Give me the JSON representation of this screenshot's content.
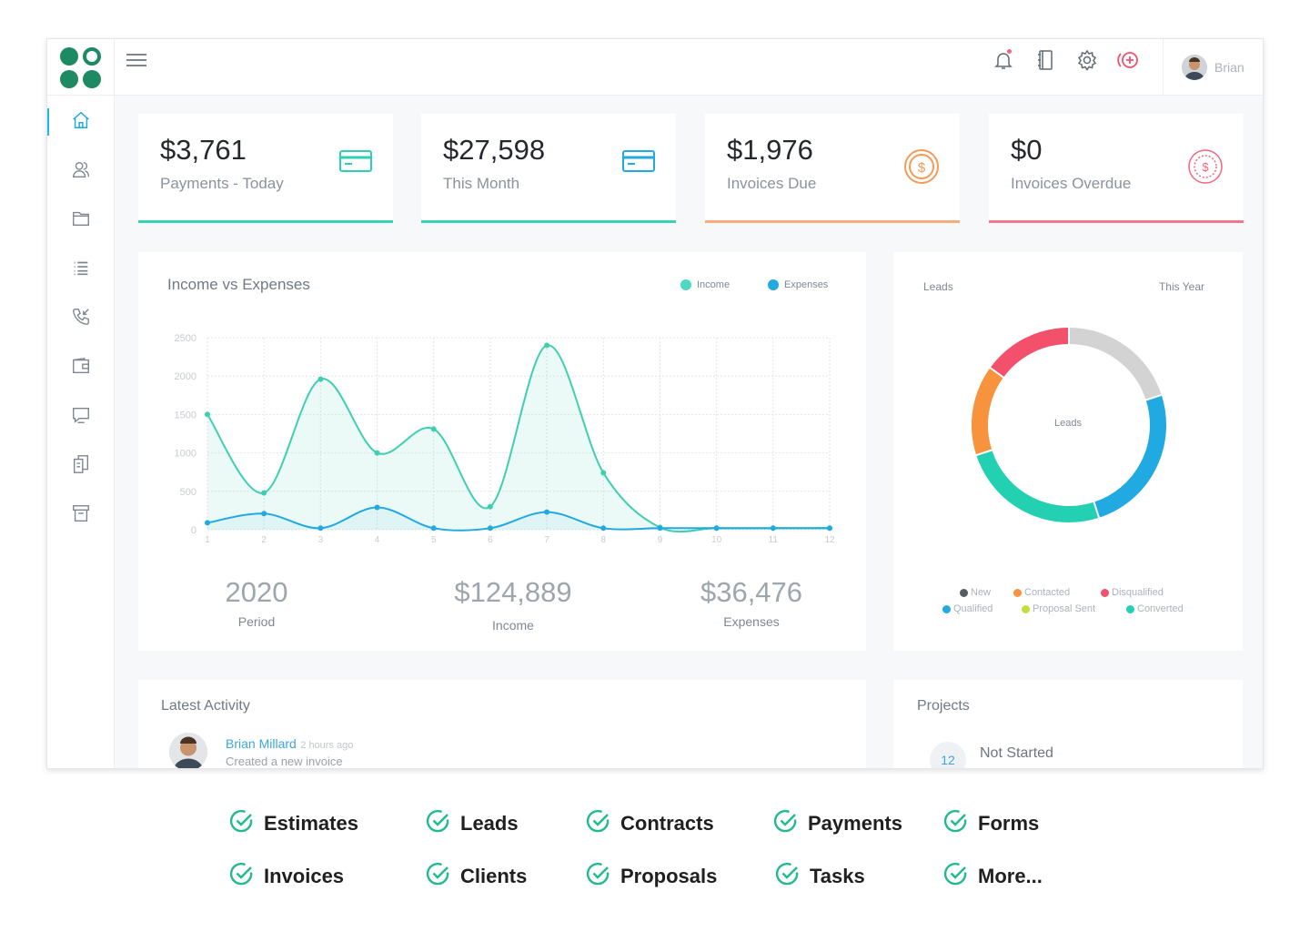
{
  "app": {
    "user_name": "Brian",
    "stats": [
      {
        "value": "$3,761",
        "label": "Payments - Today"
      },
      {
        "value": "$27,598",
        "label": "This Month"
      },
      {
        "value": "$1,976",
        "label": "Invoices Due"
      },
      {
        "value": "$0",
        "label": "Invoices Overdue"
      }
    ],
    "income_panel": {
      "title": "Income vs Expenses",
      "legend_income": "Income",
      "legend_expenses": "Expenses"
    },
    "summary": [
      {
        "value": "2020",
        "label": "Period"
      },
      {
        "value": "$124,889",
        "label": "Income"
      },
      {
        "value": "$36,476",
        "label": "Expenses"
      }
    ],
    "leads_panel": {
      "title": "Leads",
      "period": "This Year",
      "center": "Leads",
      "legend": [
        {
          "label": "New",
          "color": "#555e66"
        },
        {
          "label": "Contacted",
          "color": "#f7933d"
        },
        {
          "label": "Disqualified",
          "color": "#f2506b"
        },
        {
          "label": "Qualified",
          "color": "#21a9e1"
        },
        {
          "label": "Proposal Sent",
          "color": "#c5de3e"
        },
        {
          "label": "Converted",
          "color": "#23d0b1"
        }
      ]
    },
    "activity": {
      "title": "Latest Activity",
      "name": "Brian Millard",
      "time": "2 hours ago",
      "text": "Created a new invoice"
    },
    "projects": {
      "title": "Projects",
      "count": "12",
      "status": "Not Started"
    }
  },
  "features": [
    "Estimates",
    "Leads",
    "Contracts",
    "Payments",
    "Forms",
    "Invoices",
    "Clients",
    "Proposals",
    "Tasks",
    "More..."
  ],
  "chart_data": {
    "type": "line",
    "title": "Income vs Expenses",
    "x": [
      1,
      2,
      3,
      4,
      5,
      6,
      7,
      8,
      9,
      10,
      11,
      12
    ],
    "series": [
      {
        "name": "Income",
        "values": [
          1500,
          480,
          1960,
          1000,
          1310,
          300,
          2400,
          740,
          30,
          20,
          20,
          20
        ]
      },
      {
        "name": "Expenses",
        "values": [
          90,
          210,
          20,
          290,
          20,
          20,
          230,
          20,
          20,
          20,
          20,
          20
        ]
      }
    ],
    "ylim": [
      0,
      2500
    ],
    "yticks": [
      "0",
      "500",
      "1000",
      "1500",
      "2000",
      "2500"
    ],
    "xticks": [
      "1",
      "2",
      "3",
      "4",
      "5",
      "6",
      "7",
      "8",
      "9",
      "10",
      "11",
      "12"
    ],
    "grid": true,
    "legend": "top-right"
  },
  "leads_chart": {
    "type": "pie",
    "categories": [
      "Disqualified",
      "New",
      "Qualified",
      "Converted",
      "Contacted"
    ],
    "values": [
      15,
      20,
      25,
      25,
      15
    ],
    "colors": [
      "#f2506b",
      "#d3d3d3",
      "#21a9e1",
      "#23d0b1",
      "#f7933d"
    ]
  }
}
